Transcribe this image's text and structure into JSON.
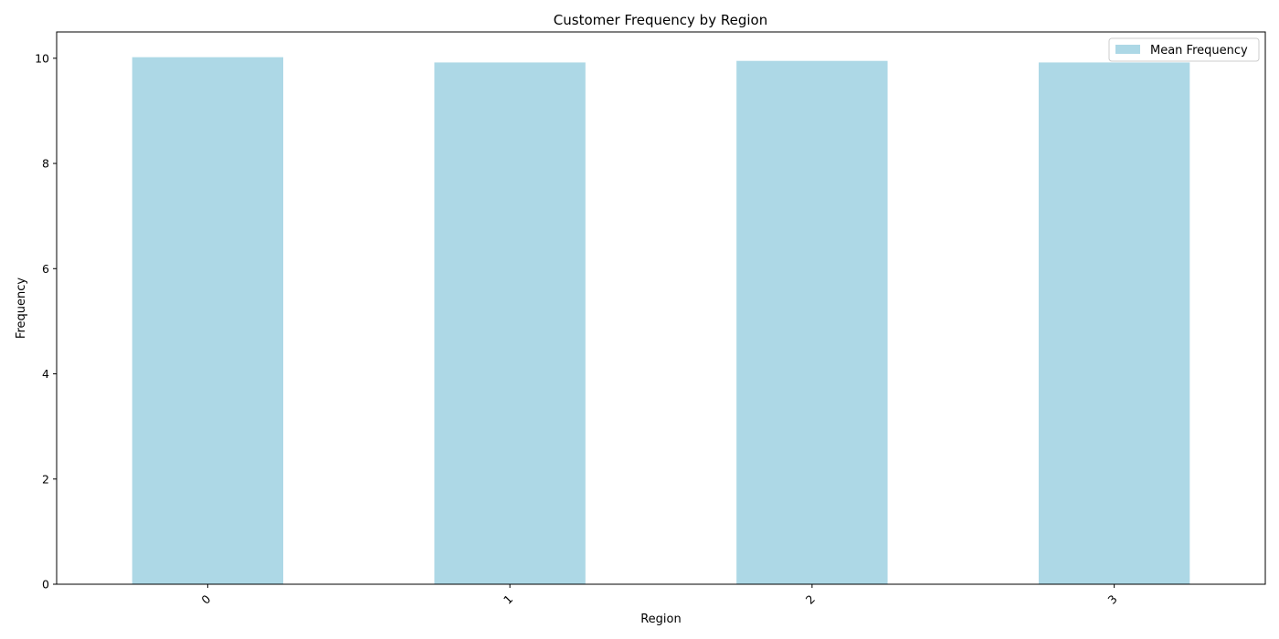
{
  "chart_data": {
    "type": "bar",
    "title": "Customer Frequency by Region",
    "xlabel": "Region",
    "ylabel": "Frequency",
    "categories": [
      "0",
      "1",
      "2",
      "3"
    ],
    "series": [
      {
        "name": "Mean Frequency",
        "values": [
          10.02,
          9.92,
          9.95,
          9.92
        ],
        "color": "#add8e6"
      }
    ],
    "ylim": [
      0,
      10.5
    ],
    "yticks": [
      0,
      2,
      4,
      6,
      8,
      10
    ],
    "grid": false,
    "legend_position": "upper-right",
    "xtick_rotation": "45"
  }
}
